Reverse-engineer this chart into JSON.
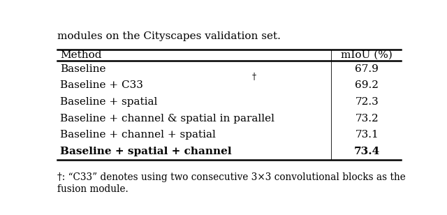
{
  "caption_top": "modules on the Cityscapes validation set.",
  "col_headers": [
    "Method",
    "mIoU (%)"
  ],
  "rows": [
    [
      "Baseline",
      "67.9",
      false
    ],
    [
      "Baseline + C33†",
      "69.2",
      false
    ],
    [
      "Baseline + spatial",
      "72.3",
      false
    ],
    [
      "Baseline + channel & spatial in parallel",
      "73.2",
      false
    ],
    [
      "Baseline + channel + spatial",
      "73.1",
      false
    ],
    [
      "Baseline + spatial + channel",
      "73.4",
      true
    ]
  ],
  "footnote_line1": "†: “C33” denotes using two consecutive 3×3 convolutional blocks as the",
  "footnote_line2": "fusion module.",
  "col_split": 0.795,
  "bg_color": "#ffffff",
  "text_color": "#000000",
  "font_size": 11.0,
  "caption_font_size": 11.0,
  "footnote_font_size": 9.8
}
